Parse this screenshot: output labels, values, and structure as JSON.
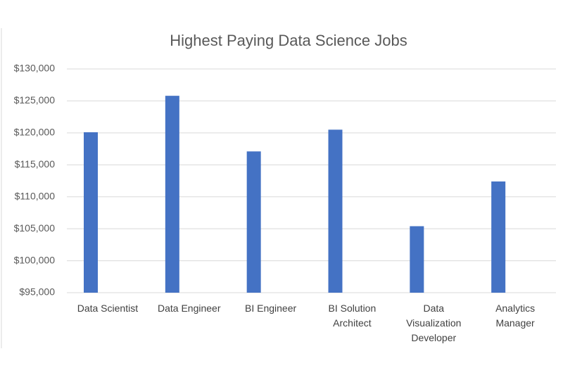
{
  "chart_data": {
    "type": "bar",
    "title": "Highest Paying Data Science Jobs",
    "categories": [
      "Data Scientist",
      "Data Engineer",
      "BI Engineer",
      "BI Solution Architect",
      "Data Visualization Developer",
      "Analytics Manager"
    ],
    "values": [
      120100,
      125800,
      117100,
      120500,
      105400,
      112400
    ],
    "color": "#4472c4",
    "ylim": [
      95000,
      130000
    ],
    "yticks": [
      {
        "value": 95000,
        "label": "$95,000"
      },
      {
        "value": 100000,
        "label": "$100,000"
      },
      {
        "value": 105000,
        "label": "$105,000"
      },
      {
        "value": 110000,
        "label": "$110,000"
      },
      {
        "value": 115000,
        "label": "$115,000"
      },
      {
        "value": 120000,
        "label": "$120,000"
      },
      {
        "value": 125000,
        "label": "$125,000"
      },
      {
        "value": 130000,
        "label": "$130,000"
      }
    ],
    "grid": true
  }
}
